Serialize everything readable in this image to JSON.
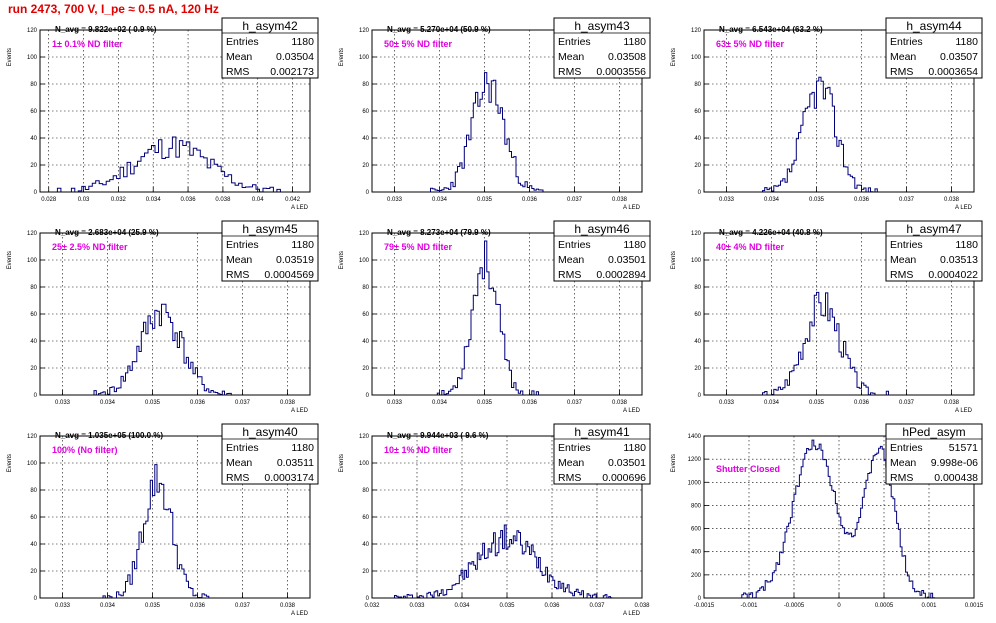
{
  "page": {
    "title": "run 2473,   700 V, I_pe ≈ 0.5 nA, 120 Hz"
  },
  "colors": {
    "histogram": "#00007a",
    "annotation": "#e000e0",
    "title": "#e00000"
  },
  "chart_data": [
    {
      "type": "histogram",
      "name": "h_asym42",
      "navg": "N_avg = 9.822e+02 ( 0.9 %)",
      "filter": "1± 0.1% ND filter",
      "stats": {
        "title": "h_asym42",
        "entries_label": "Entries",
        "entries": "1180",
        "mean_label": "Mean",
        "mean": "0.03504",
        "rms_label": "RMS",
        "rms": "0.002173"
      },
      "ylabel": "Events",
      "xlabel": "A_LED",
      "xlim": [
        0.0275,
        0.043
      ],
      "ylim": [
        0,
        120
      ],
      "xticks": [
        "0.028",
        "0.03",
        "0.032",
        "0.034",
        "0.036",
        "0.038",
        "0.04",
        "0.042"
      ],
      "xtick_values": [
        0.028,
        0.03,
        0.032,
        0.034,
        0.036,
        0.038,
        0.04,
        0.042
      ],
      "yticks": [
        "0",
        "20",
        "40",
        "60",
        "80",
        "100",
        "120"
      ],
      "ytick_values": [
        0,
        20,
        40,
        60,
        80,
        100,
        120
      ],
      "mean": 0.03504,
      "sigma": 0.002173,
      "bin_width": 0.0002,
      "range": [
        0.0285,
        0.0415
      ],
      "amplitude": 34,
      "seed": 11
    },
    {
      "type": "histogram",
      "name": "h_asym43",
      "navg": "N_avg = 5.270e+04 (50.9 %)",
      "filter": "50± 5% ND filter",
      "stats": {
        "title": "h_asym43",
        "entries_label": "Entries",
        "entries": "1180",
        "mean_label": "Mean",
        "mean": "0.03508",
        "rms_label": "RMS",
        "rms": "0.0003556"
      },
      "ylabel": "Events",
      "xlabel": "A_LED",
      "xlim": [
        0.0325,
        0.0385
      ],
      "ylim": [
        0,
        120
      ],
      "xticks": [
        "0.033",
        "0.034",
        "0.035",
        "0.036",
        "0.037",
        "0.038"
      ],
      "xtick_values": [
        0.033,
        0.034,
        0.035,
        0.036,
        0.037,
        0.038
      ],
      "yticks": [
        "0",
        "20",
        "40",
        "60",
        "80",
        "100",
        "120"
      ],
      "ytick_values": [
        0,
        20,
        40,
        60,
        80,
        100,
        120
      ],
      "mean": 0.03508,
      "sigma": 0.0003556,
      "bin_width": 5e-05,
      "range": [
        0.0338,
        0.0364
      ],
      "amplitude": 80,
      "seed": 23
    },
    {
      "type": "histogram",
      "name": "h_asym44",
      "navg": "N_avg = 6.543e+04 (63.2 %)",
      "filter": "63± 5% ND filter",
      "stats": {
        "title": "h_asym44",
        "entries_label": "Entries",
        "entries": "1180",
        "mean_label": "Mean",
        "mean": "0.03507",
        "rms_label": "RMS",
        "rms": "0.0003654"
      },
      "ylabel": "Events",
      "xlabel": "A_LED",
      "xlim": [
        0.0325,
        0.0385
      ],
      "ylim": [
        0,
        120
      ],
      "xticks": [
        "0.033",
        "0.034",
        "0.035",
        "0.036",
        "0.037",
        "0.038"
      ],
      "xtick_values": [
        0.033,
        0.034,
        0.035,
        0.036,
        0.037,
        0.038
      ],
      "yticks": [
        "0",
        "20",
        "40",
        "60",
        "80",
        "100",
        "120"
      ],
      "ytick_values": [
        0,
        20,
        40,
        60,
        80,
        100,
        120
      ],
      "mean": 0.03507,
      "sigma": 0.0003654,
      "bin_width": 5e-05,
      "range": [
        0.0338,
        0.0364
      ],
      "amplitude": 78,
      "seed": 37
    },
    {
      "type": "histogram",
      "name": "h_asym45",
      "navg": "N_avg = 2.683e+04 (25.9 %)",
      "filter": "25± 2.5% ND filter",
      "stats": {
        "title": "h_asym45",
        "entries_label": "Entries",
        "entries": "1180",
        "mean_label": "Mean",
        "mean": "0.03519",
        "rms_label": "RMS",
        "rms": "0.0004569"
      },
      "ylabel": "Events",
      "xlabel": "A_LED",
      "xlim": [
        0.0325,
        0.0385
      ],
      "ylim": [
        0,
        120
      ],
      "xticks": [
        "0.033",
        "0.034",
        "0.035",
        "0.036",
        "0.037",
        "0.038"
      ],
      "xtick_values": [
        0.033,
        0.034,
        0.035,
        0.036,
        0.037,
        0.038
      ],
      "yticks": [
        "0",
        "20",
        "40",
        "60",
        "80",
        "100",
        "120"
      ],
      "ytick_values": [
        0,
        20,
        40,
        60,
        80,
        100,
        120
      ],
      "mean": 0.03519,
      "sigma": 0.0004569,
      "bin_width": 5e-05,
      "range": [
        0.0337,
        0.0368
      ],
      "amplitude": 62,
      "seed": 41
    },
    {
      "type": "histogram",
      "name": "h_asym46",
      "navg": "N_avg = 8.273e+04 (79.9 %)",
      "filter": "79± 5% ND filter",
      "stats": {
        "title": "h_asym46",
        "entries_label": "Entries",
        "entries": "1180",
        "mean_label": "Mean",
        "mean": "0.03501",
        "rms_label": "RMS",
        "rms": "0.0002894"
      },
      "ylabel": "Events",
      "xlabel": "A_LED",
      "xlim": [
        0.0325,
        0.0385
      ],
      "ylim": [
        0,
        120
      ],
      "xticks": [
        "0.033",
        "0.034",
        "0.035",
        "0.036",
        "0.037",
        "0.038"
      ],
      "xtick_values": [
        0.033,
        0.034,
        0.035,
        0.036,
        0.037,
        0.038
      ],
      "yticks": [
        "0",
        "20",
        "40",
        "60",
        "80",
        "100",
        "120"
      ],
      "ytick_values": [
        0,
        20,
        40,
        60,
        80,
        100,
        120
      ],
      "mean": 0.03501,
      "sigma": 0.0002894,
      "bin_width": 5e-05,
      "range": [
        0.0339,
        0.0362
      ],
      "amplitude": 100,
      "seed": 53
    },
    {
      "type": "histogram",
      "name": "h_asym47",
      "navg": "N_avg = 4.226e+04 (40.8 %)",
      "filter": "40± 4% ND filter",
      "stats": {
        "title": "h_asym47",
        "entries_label": "Entries",
        "entries": "1180",
        "mean_label": "Mean",
        "mean": "0.03513",
        "rms_label": "RMS",
        "rms": "0.0004022"
      },
      "ylabel": "Events",
      "xlabel": "A_LED",
      "xlim": [
        0.0325,
        0.0385
      ],
      "ylim": [
        0,
        120
      ],
      "xticks": [
        "0.033",
        "0.034",
        "0.035",
        "0.036",
        "0.037",
        "0.038"
      ],
      "xtick_values": [
        0.033,
        0.034,
        0.035,
        0.036,
        0.037,
        0.038
      ],
      "yticks": [
        "0",
        "20",
        "40",
        "60",
        "80",
        "100",
        "120"
      ],
      "ytick_values": [
        0,
        20,
        40,
        60,
        80,
        100,
        120
      ],
      "mean": 0.03513,
      "sigma": 0.0004022,
      "bin_width": 5e-05,
      "range": [
        0.0338,
        0.0366
      ],
      "amplitude": 68,
      "seed": 67
    },
    {
      "type": "histogram",
      "name": "h_asym40",
      "navg": "N_avg = 1.035e+05 (100.0 %)",
      "filter": "100% (No filter)",
      "stats": {
        "title": "h_asym40",
        "entries_label": "Entries",
        "entries": "1180",
        "mean_label": "Mean",
        "mean": "0.03511",
        "rms_label": "RMS",
        "rms": "0.0003174"
      },
      "ylabel": "Events",
      "xlabel": "A_LED",
      "xlim": [
        0.0325,
        0.0385
      ],
      "ylim": [
        0,
        120
      ],
      "xticks": [
        "0.033",
        "0.034",
        "0.035",
        "0.036",
        "0.037",
        "0.038"
      ],
      "xtick_values": [
        0.033,
        0.034,
        0.035,
        0.036,
        0.037,
        0.038
      ],
      "yticks": [
        "0",
        "20",
        "40",
        "60",
        "80",
        "100",
        "120"
      ],
      "ytick_values": [
        0,
        20,
        40,
        60,
        80,
        100,
        120
      ],
      "mean": 0.03511,
      "sigma": 0.0003174,
      "bin_width": 5e-05,
      "range": [
        0.0339,
        0.0363
      ],
      "amplitude": 88,
      "seed": 79
    },
    {
      "type": "histogram",
      "name": "h_asym41",
      "navg": "N_avg = 9.944e+03 ( 9.6 %)",
      "filter": "10± 1% ND filter",
      "stats": {
        "title": "h_asym41",
        "entries_label": "Entries",
        "entries": "1180",
        "mean_label": "Mean",
        "mean": "0.03501",
        "rms_label": "RMS",
        "rms": "0.000696"
      },
      "ylabel": "Events",
      "xlabel": "A_LED",
      "xlim": [
        0.032,
        0.038
      ],
      "ylim": [
        0,
        120
      ],
      "xticks": [
        "0.032",
        "0.033",
        "0.034",
        "0.035",
        "0.036",
        "0.037",
        "0.038"
      ],
      "xtick_values": [
        0.032,
        0.033,
        0.034,
        0.035,
        0.036,
        0.037,
        0.038
      ],
      "yticks": [
        "0",
        "20",
        "40",
        "60",
        "80",
        "100",
        "120"
      ],
      "ytick_values": [
        0,
        20,
        40,
        60,
        80,
        100,
        120
      ],
      "mean": 0.03501,
      "sigma": 0.000696,
      "bin_width": 4e-05,
      "range": [
        0.0325,
        0.0373
      ],
      "amplitude": 44,
      "seed": 97
    },
    {
      "type": "histogram",
      "name": "hPed_asym",
      "navg": "",
      "filter": "Shutter Closed",
      "stats": {
        "title": "hPed_asym",
        "entries_label": "Entries",
        "entries": "51571",
        "mean_label": "Mean",
        "mean": "9.998e-06",
        "rms_label": "RMS",
        "rms": "0.000438"
      },
      "ylabel": "Events",
      "xlabel": "",
      "xlim": [
        -0.0015,
        0.0015
      ],
      "ylim": [
        0,
        1400
      ],
      "xticks": [
        "-0.0015",
        "-0.001",
        "-0.0005",
        "0",
        "0.0005",
        "0.001",
        "0.0015"
      ],
      "xtick_values": [
        -0.0015,
        -0.001,
        -0.0005,
        0,
        0.0005,
        0.001,
        0.0015
      ],
      "yticks": [
        "0",
        "200",
        "400",
        "600",
        "800",
        "1000",
        "1200",
        "1400"
      ],
      "ytick_values": [
        0,
        200,
        400,
        600,
        800,
        1000,
        1200,
        1400
      ],
      "bimodal": true,
      "peaks": [
        -0.00027,
        0.00045
      ],
      "sigmas": [
        0.00024,
        0.00017
      ],
      "amplitudes": [
        1330,
        1270
      ],
      "bin_width": 2e-05,
      "range": [
        -0.0011,
        0.0011
      ],
      "seed": 131
    }
  ]
}
